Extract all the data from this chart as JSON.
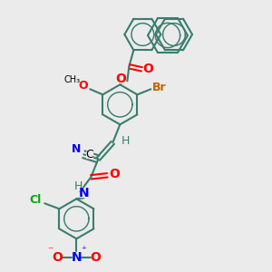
{
  "bg_color": "#ebebeb",
  "bond_color": "#3a7d6e",
  "bond_width": 1.5,
  "atom_colors": {
    "O": "#ff0000",
    "N": "#0000ee",
    "Br": "#bb6600",
    "Cl": "#00aa00",
    "H": "#3a7d6e",
    "C": "#000000"
  },
  "font_size": 9,
  "fig_size": [
    3.0,
    3.0
  ],
  "dpi": 100
}
